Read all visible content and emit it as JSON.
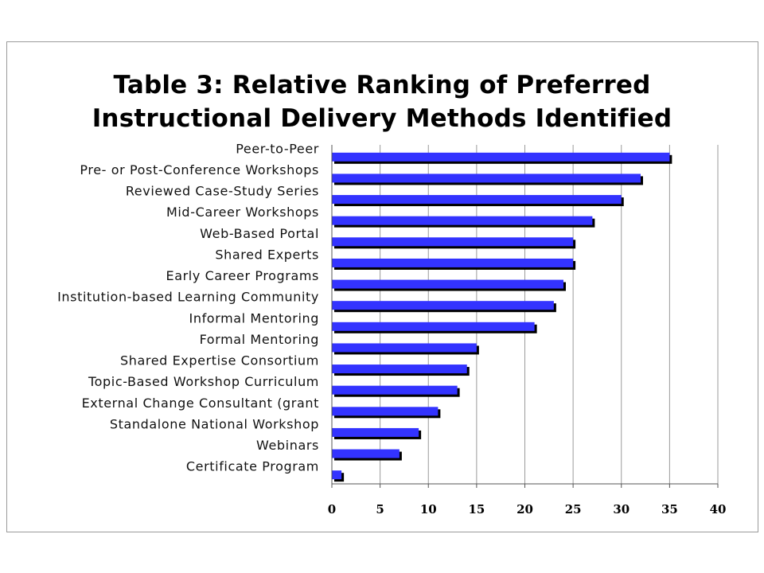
{
  "chart_data": {
    "type": "bar",
    "orientation": "horizontal",
    "title": "Table 3: Relative Ranking of Preferred\nInstructional Delivery Methods Identified",
    "xlabel": "",
    "ylabel": "",
    "categories": [
      "Peer-to-Peer",
      "Pre- or Post-Conference Workshops",
      "Reviewed Case-Study Series",
      "Mid-Career Workshops",
      "Web-Based Portal",
      "Shared Experts",
      "Early Career Programs",
      "Institution-based Learning Community",
      "Informal Mentoring",
      "Formal Mentoring",
      "Shared Expertise Consortium",
      "Topic-Based Workshop Curriculum",
      "External Change Consultant (grant",
      "Standalone National Workshop",
      "Webinars",
      "Certificate Program"
    ],
    "values": [
      35,
      32,
      30,
      27,
      25,
      25,
      24,
      23,
      21,
      15,
      14,
      13,
      11,
      9,
      7,
      1
    ],
    "xlim": [
      0,
      40
    ],
    "xticks": [
      "0",
      "5",
      "10",
      "15",
      "20",
      "25",
      "30",
      "35",
      "40"
    ],
    "grid": "vertical",
    "legend": "none",
    "colors": {
      "bar": "#3333ff",
      "shadow": "#000000",
      "grid": "#9a9a9a"
    }
  }
}
